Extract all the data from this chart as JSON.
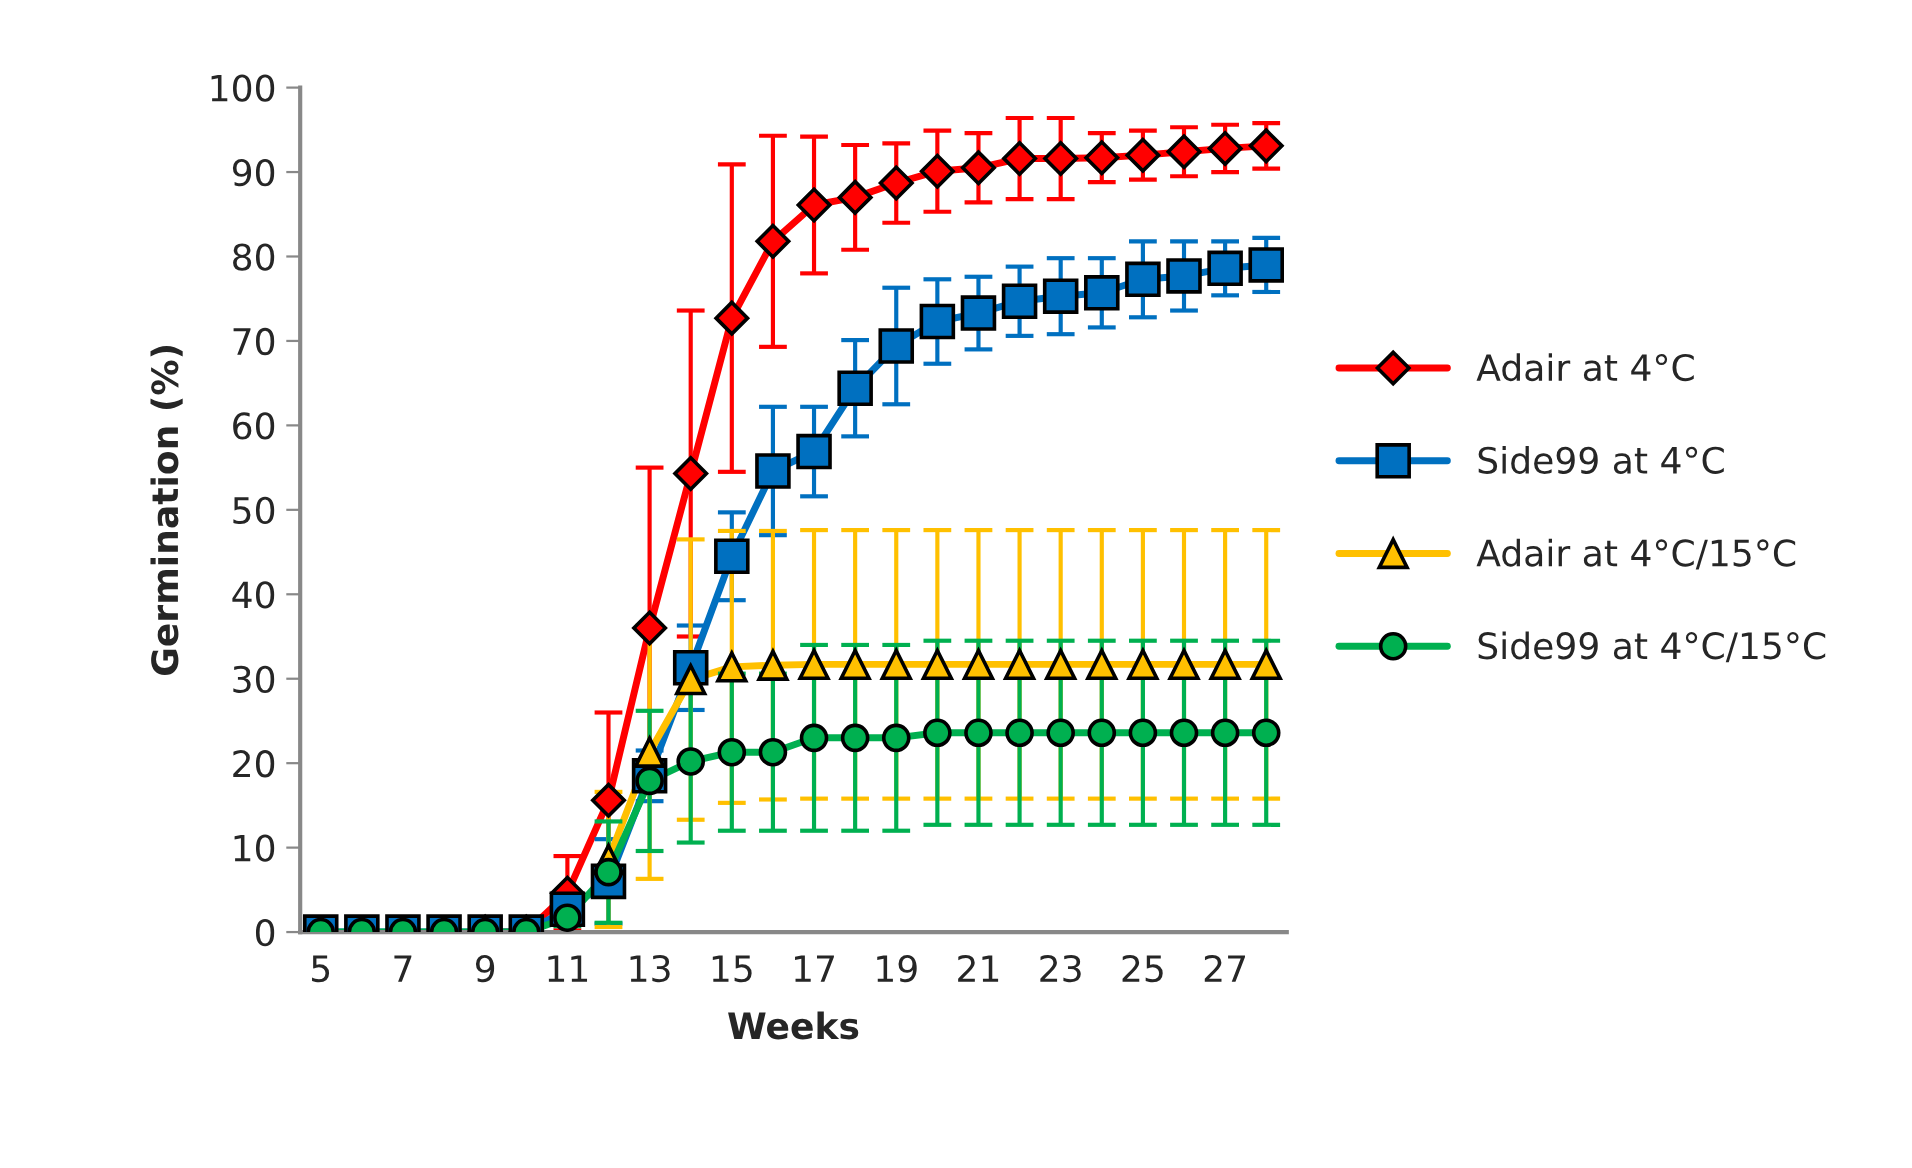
{
  "chart_data": {
    "type": "line",
    "xlabel": "Weeks",
    "ylabel": "Germination (%)",
    "categories": [
      "5",
      null,
      "7",
      null,
      "9",
      null,
      "11",
      null,
      "13",
      null,
      "15",
      null,
      "17",
      null,
      "19",
      null,
      "21",
      null,
      "23",
      null,
      "25",
      null,
      "27",
      null
    ],
    "ylim": [
      0,
      100
    ],
    "yticks": [
      0,
      10,
      20,
      30,
      40,
      50,
      60,
      70,
      80,
      90,
      100
    ],
    "grid": false,
    "legend": "right",
    "series": [
      {
        "name": "Adair at 4°C",
        "color": "#ff0000",
        "marker": "diamond",
        "values": [
          null,
          null,
          null,
          null,
          0,
          0,
          4.6,
          15.6,
          36,
          54.3,
          72.7,
          81.8,
          86.1,
          87.0,
          88.7,
          90.1,
          90.5,
          91.6,
          91.6,
          91.7,
          92.0,
          92.4,
          92.8,
          93.1
        ],
        "errors": [
          null,
          null,
          null,
          null,
          null,
          null,
          4.4,
          10.4,
          19,
          19.3,
          18.2,
          12.5,
          8.1,
          6.2,
          4.7,
          4.8,
          4.1,
          4.8,
          4.8,
          2.9,
          2.9,
          2.9,
          2.8,
          2.7
        ]
      },
      {
        "name": "Side99 at 4°C",
        "color": "#0070c0",
        "marker": "square",
        "values": [
          0,
          0,
          0,
          0,
          0,
          0,
          2.7,
          6,
          18.5,
          31.3,
          44.5,
          54.6,
          56.9,
          64.4,
          69.4,
          72.3,
          73.3,
          74.7,
          75.3,
          75.7,
          77.3,
          77.7,
          78.6,
          79.0
        ],
        "errors": [
          null,
          null,
          null,
          null,
          null,
          null,
          1,
          5,
          3,
          5,
          5.2,
          7.6,
          5.3,
          5.7,
          6.9,
          5,
          4.3,
          4.1,
          4.5,
          4.1,
          4.5,
          4.1,
          3.2,
          3.2
        ]
      },
      {
        "name": "Adair at 4°C/15°C",
        "color": "#ffc000",
        "marker": "triangle",
        "values": [
          null,
          null,
          null,
          null,
          null,
          null,
          null,
          8.6,
          21.3,
          29.9,
          31.4,
          31.6,
          31.7,
          31.7,
          31.7,
          31.7,
          31.7,
          31.7,
          31.7,
          31.7,
          31.7,
          31.7,
          31.7,
          31.7
        ],
        "errors": [
          null,
          null,
          null,
          null,
          null,
          null,
          null,
          8,
          15,
          16.6,
          16.1,
          15.9,
          15.9,
          15.9,
          15.9,
          15.9,
          15.9,
          15.9,
          15.9,
          15.9,
          15.9,
          15.9,
          15.9,
          15.9
        ]
      },
      {
        "name": "Side99 at 4°C/15°C",
        "color": "#00b050",
        "marker": "circle",
        "values": [
          0,
          0,
          0,
          0,
          0,
          0,
          1.7,
          7.1,
          17.9,
          20.2,
          21.3,
          21.3,
          23.0,
          23.0,
          23.0,
          23.6,
          23.6,
          23.6,
          23.6,
          23.6,
          23.6,
          23.6,
          23.6,
          23.6
        ],
        "errors": [
          null,
          null,
          null,
          null,
          null,
          null,
          1,
          6,
          8.3,
          9.6,
          9.3,
          9.3,
          11,
          11,
          11,
          10.9,
          10.9,
          10.9,
          10.9,
          10.9,
          10.9,
          10.9,
          10.9,
          10.9
        ]
      }
    ]
  }
}
